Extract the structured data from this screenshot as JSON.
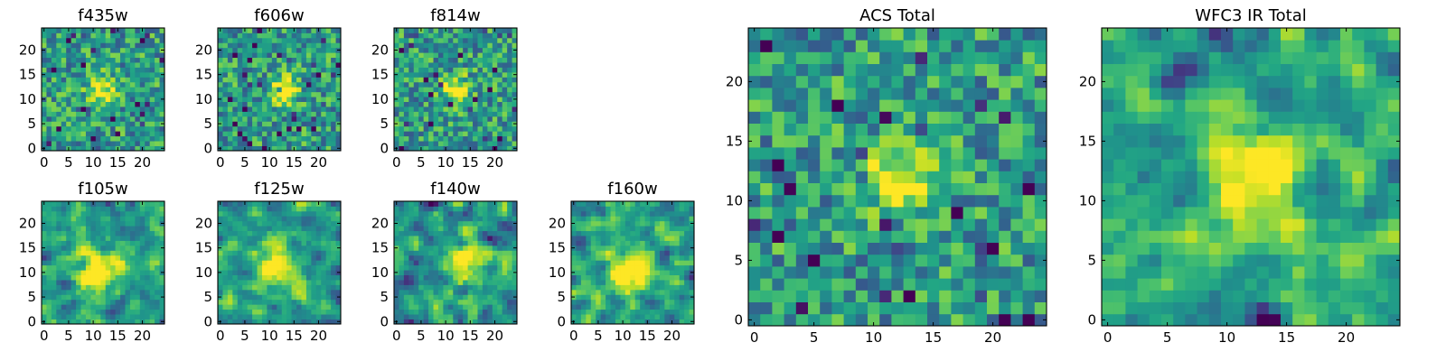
{
  "chart_data": [
    {
      "type": "heatmap",
      "title": "f435w",
      "xlim": [
        -0.5,
        24.5
      ],
      "ylim": [
        -0.5,
        24.5
      ],
      "xticks": [
        0,
        5,
        10,
        15,
        20
      ],
      "yticks": [
        0,
        5,
        10,
        15,
        20
      ],
      "grid_size": [
        25,
        25
      ],
      "colormap": "viridis",
      "bright_blob_center": [
        12,
        12
      ],
      "bright_blob_radius": 2,
      "seed": 11,
      "smooth": false
    },
    {
      "type": "heatmap",
      "title": "f606w",
      "xlim": [
        -0.5,
        24.5
      ],
      "ylim": [
        -0.5,
        24.5
      ],
      "xticks": [
        0,
        5,
        10,
        15,
        20
      ],
      "yticks": [
        0,
        5,
        10,
        15,
        20
      ],
      "grid_size": [
        25,
        25
      ],
      "colormap": "viridis",
      "bright_blob_center": [
        13,
        12
      ],
      "bright_blob_radius": 2,
      "seed": 23,
      "smooth": false
    },
    {
      "type": "heatmap",
      "title": "f814w",
      "xlim": [
        -0.5,
        24.5
      ],
      "ylim": [
        -0.5,
        24.5
      ],
      "xticks": [
        0,
        5,
        10,
        15,
        20
      ],
      "yticks": [
        0,
        5,
        10,
        15,
        20
      ],
      "grid_size": [
        25,
        25
      ],
      "colormap": "viridis",
      "bright_blob_center": [
        12,
        12
      ],
      "bright_blob_radius": 2,
      "seed": 37,
      "smooth": false
    },
    {
      "type": "heatmap",
      "title": "f105w",
      "xlim": [
        -0.5,
        24.5
      ],
      "ylim": [
        -0.5,
        24.5
      ],
      "xticks": [
        0,
        5,
        10,
        15,
        20
      ],
      "yticks": [
        0,
        5,
        10,
        15,
        20
      ],
      "grid_size": [
        25,
        25
      ],
      "colormap": "viridis",
      "bright_blob_center": [
        11,
        10
      ],
      "bright_blob_radius": 3,
      "seed": 41,
      "smooth": true
    },
    {
      "type": "heatmap",
      "title": "f125w",
      "xlim": [
        -0.5,
        24.5
      ],
      "ylim": [
        -0.5,
        24.5
      ],
      "xticks": [
        0,
        5,
        10,
        15,
        20
      ],
      "yticks": [
        0,
        5,
        10,
        15,
        20
      ],
      "grid_size": [
        25,
        25
      ],
      "colormap": "viridis",
      "bright_blob_center": [
        12,
        11
      ],
      "bright_blob_radius": 3,
      "seed": 53,
      "smooth": true
    },
    {
      "type": "heatmap",
      "title": "f140w",
      "xlim": [
        -0.5,
        24.5
      ],
      "ylim": [
        -0.5,
        24.5
      ],
      "xticks": [
        0,
        5,
        10,
        15,
        20
      ],
      "yticks": [
        0,
        5,
        10,
        15,
        20
      ],
      "grid_size": [
        25,
        25
      ],
      "colormap": "viridis",
      "bright_blob_center": [
        14,
        12
      ],
      "bright_blob_radius": 3,
      "seed": 67,
      "smooth": true
    },
    {
      "type": "heatmap",
      "title": "f160w",
      "xlim": [
        -0.5,
        24.5
      ],
      "ylim": [
        -0.5,
        24.5
      ],
      "xticks": [
        0,
        5,
        10,
        15,
        20
      ],
      "yticks": [
        0,
        5,
        10,
        15,
        20
      ],
      "grid_size": [
        25,
        25
      ],
      "colormap": "viridis",
      "bright_blob_center": [
        11,
        10
      ],
      "bright_blob_radius": 3,
      "seed": 71,
      "smooth": true
    },
    {
      "type": "heatmap",
      "title": "ACS Total",
      "xlim": [
        -0.5,
        24.5
      ],
      "ylim": [
        -0.5,
        24.5
      ],
      "xticks": [
        0,
        5,
        10,
        15,
        20
      ],
      "yticks": [
        0,
        5,
        10,
        15,
        20
      ],
      "grid_size": [
        25,
        25
      ],
      "colormap": "viridis",
      "bright_blob_center": [
        12,
        12
      ],
      "bright_blob_radius": 2,
      "seed": 83,
      "smooth": false
    },
    {
      "type": "heatmap",
      "title": "WFC3 IR Total",
      "xlim": [
        -0.5,
        24.5
      ],
      "ylim": [
        -0.5,
        24.5
      ],
      "xticks": [
        0,
        5,
        10,
        15,
        20
      ],
      "yticks": [
        0,
        5,
        10,
        15,
        20
      ],
      "grid_size": [
        25,
        25
      ],
      "colormap": "viridis",
      "bright_blob_center": [
        12,
        12
      ],
      "bright_blob_radius": 3,
      "seed": 97,
      "smooth": true
    }
  ]
}
